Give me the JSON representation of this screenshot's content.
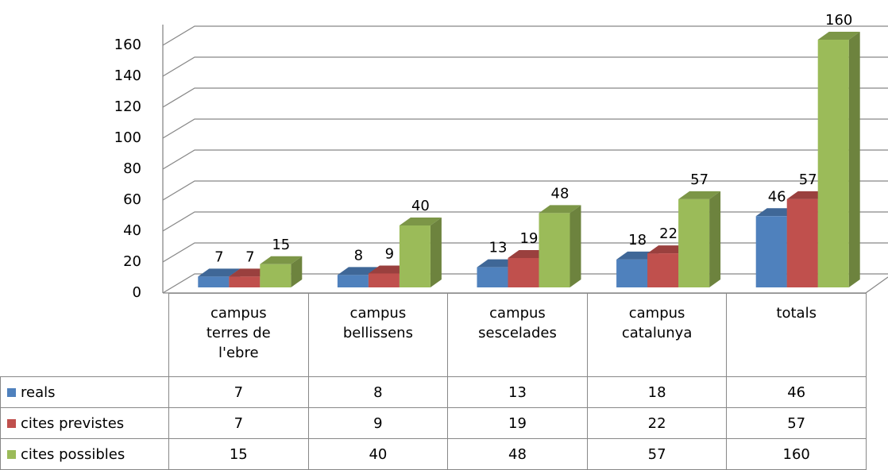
{
  "chart_data": {
    "type": "bar3d",
    "categories": [
      "campus terres de l'ebre",
      "campus bellissens",
      "campus sescelades",
      "campus catalunya",
      "totals"
    ],
    "series": [
      {
        "name": "reals",
        "color": "#4f81bd",
        "values": [
          7,
          8,
          13,
          18,
          46
        ]
      },
      {
        "name": "cites previstes",
        "color": "#c0504d",
        "values": [
          7,
          9,
          19,
          22,
          57
        ]
      },
      {
        "name": "cites possibles",
        "color": "#9bbb59",
        "values": [
          15,
          40,
          48,
          57,
          160
        ]
      }
    ],
    "ylim": [
      0,
      160
    ],
    "yticks": [
      0,
      20,
      40,
      60,
      80,
      100,
      120,
      140,
      160
    ],
    "grid": true,
    "data_table": true
  }
}
